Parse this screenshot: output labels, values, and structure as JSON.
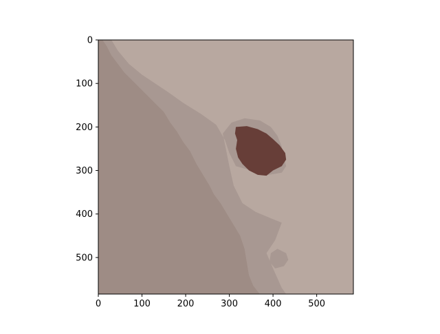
{
  "chart_data": {
    "type": "heatmap",
    "title": "",
    "xlabel": "",
    "ylabel": "",
    "xlim": [
      0,
      584
    ],
    "ylim": [
      584,
      0
    ],
    "y_inverted": true,
    "grid": false,
    "legend": "none",
    "x_ticks": [
      {
        "value": 0,
        "label": "0"
      },
      {
        "value": 100,
        "label": "100"
      },
      {
        "value": 200,
        "label": "200"
      },
      {
        "value": 300,
        "label": "300"
      },
      {
        "value": 400,
        "label": "400"
      },
      {
        "value": 500,
        "label": "500"
      }
    ],
    "y_ticks": [
      {
        "value": 0,
        "label": "0"
      },
      {
        "value": 100,
        "label": "100"
      },
      {
        "value": 200,
        "label": "200"
      },
      {
        "value": 300,
        "label": "300"
      },
      {
        "value": 400,
        "label": "400"
      },
      {
        "value": 500,
        "label": "500"
      }
    ],
    "classes": [
      {
        "name": "background",
        "color": "#b8a8a0"
      },
      {
        "name": "dark-region",
        "color": "#9e8c85"
      },
      {
        "name": "halo",
        "color": "#a89892"
      },
      {
        "name": "lesion",
        "color": "#673e38"
      }
    ],
    "regions": [
      {
        "class": "dark-region",
        "polygon": [
          [
            0,
            0
          ],
          [
            10,
            0
          ],
          [
            20,
            15
          ],
          [
            30,
            35
          ],
          [
            45,
            55
          ],
          [
            60,
            75
          ],
          [
            80,
            95
          ],
          [
            100,
            115
          ],
          [
            125,
            140
          ],
          [
            150,
            165
          ],
          [
            165,
            190
          ],
          [
            180,
            210
          ],
          [
            195,
            235
          ],
          [
            210,
            255
          ],
          [
            225,
            285
          ],
          [
            240,
            310
          ],
          [
            255,
            335
          ],
          [
            265,
            355
          ],
          [
            280,
            375
          ],
          [
            295,
            400
          ],
          [
            310,
            425
          ],
          [
            325,
            450
          ],
          [
            335,
            480
          ],
          [
            340,
            510
          ],
          [
            345,
            540
          ],
          [
            355,
            565
          ],
          [
            370,
            584
          ],
          [
            0,
            584
          ]
        ]
      },
      {
        "class": "halo",
        "polygon": [
          [
            0,
            0
          ],
          [
            30,
            0
          ],
          [
            45,
            25
          ],
          [
            70,
            55
          ],
          [
            100,
            80
          ],
          [
            130,
            100
          ],
          [
            160,
            120
          ],
          [
            195,
            145
          ],
          [
            235,
            170
          ],
          [
            270,
            195
          ],
          [
            290,
            230
          ],
          [
            300,
            260
          ],
          [
            315,
            290
          ],
          [
            350,
            300
          ],
          [
            390,
            310
          ],
          [
            420,
            305
          ],
          [
            430,
            290
          ],
          [
            425,
            270
          ],
          [
            420,
            245
          ],
          [
            410,
            220
          ],
          [
            395,
            200
          ],
          [
            370,
            185
          ],
          [
            335,
            180
          ],
          [
            305,
            190
          ],
          [
            285,
            215
          ],
          [
            300,
            290
          ],
          [
            310,
            335
          ],
          [
            330,
            375
          ],
          [
            360,
            395
          ],
          [
            395,
            410
          ],
          [
            420,
            420
          ],
          [
            405,
            460
          ],
          [
            385,
            490
          ],
          [
            400,
            525
          ],
          [
            420,
            570
          ],
          [
            430,
            584
          ],
          [
            370,
            584
          ],
          [
            355,
            565
          ],
          [
            345,
            540
          ],
          [
            340,
            510
          ],
          [
            335,
            480
          ],
          [
            325,
            450
          ],
          [
            310,
            425
          ],
          [
            295,
            400
          ],
          [
            280,
            375
          ],
          [
            265,
            355
          ],
          [
            255,
            335
          ],
          [
            240,
            310
          ],
          [
            225,
            285
          ],
          [
            210,
            255
          ],
          [
            195,
            235
          ],
          [
            180,
            210
          ],
          [
            165,
            190
          ],
          [
            150,
            165
          ],
          [
            125,
            140
          ],
          [
            100,
            115
          ],
          [
            80,
            95
          ],
          [
            60,
            75
          ],
          [
            45,
            55
          ],
          [
            30,
            35
          ],
          [
            20,
            15
          ],
          [
            10,
            0
          ]
        ]
      },
      {
        "class": "halo",
        "polygon": [
          [
            395,
            490
          ],
          [
            410,
            480
          ],
          [
            430,
            490
          ],
          [
            435,
            505
          ],
          [
            425,
            520
          ],
          [
            405,
            525
          ],
          [
            392,
            510
          ]
        ]
      },
      {
        "class": "lesion",
        "polygon": [
          [
            315,
            200
          ],
          [
            340,
            198
          ],
          [
            365,
            205
          ],
          [
            385,
            215
          ],
          [
            400,
            228
          ],
          [
            415,
            242
          ],
          [
            428,
            260
          ],
          [
            430,
            275
          ],
          [
            420,
            290
          ],
          [
            400,
            300
          ],
          [
            385,
            312
          ],
          [
            365,
            310
          ],
          [
            345,
            300
          ],
          [
            330,
            285
          ],
          [
            320,
            270
          ],
          [
            315,
            250
          ],
          [
            318,
            230
          ],
          [
            313,
            215
          ]
        ]
      }
    ]
  }
}
